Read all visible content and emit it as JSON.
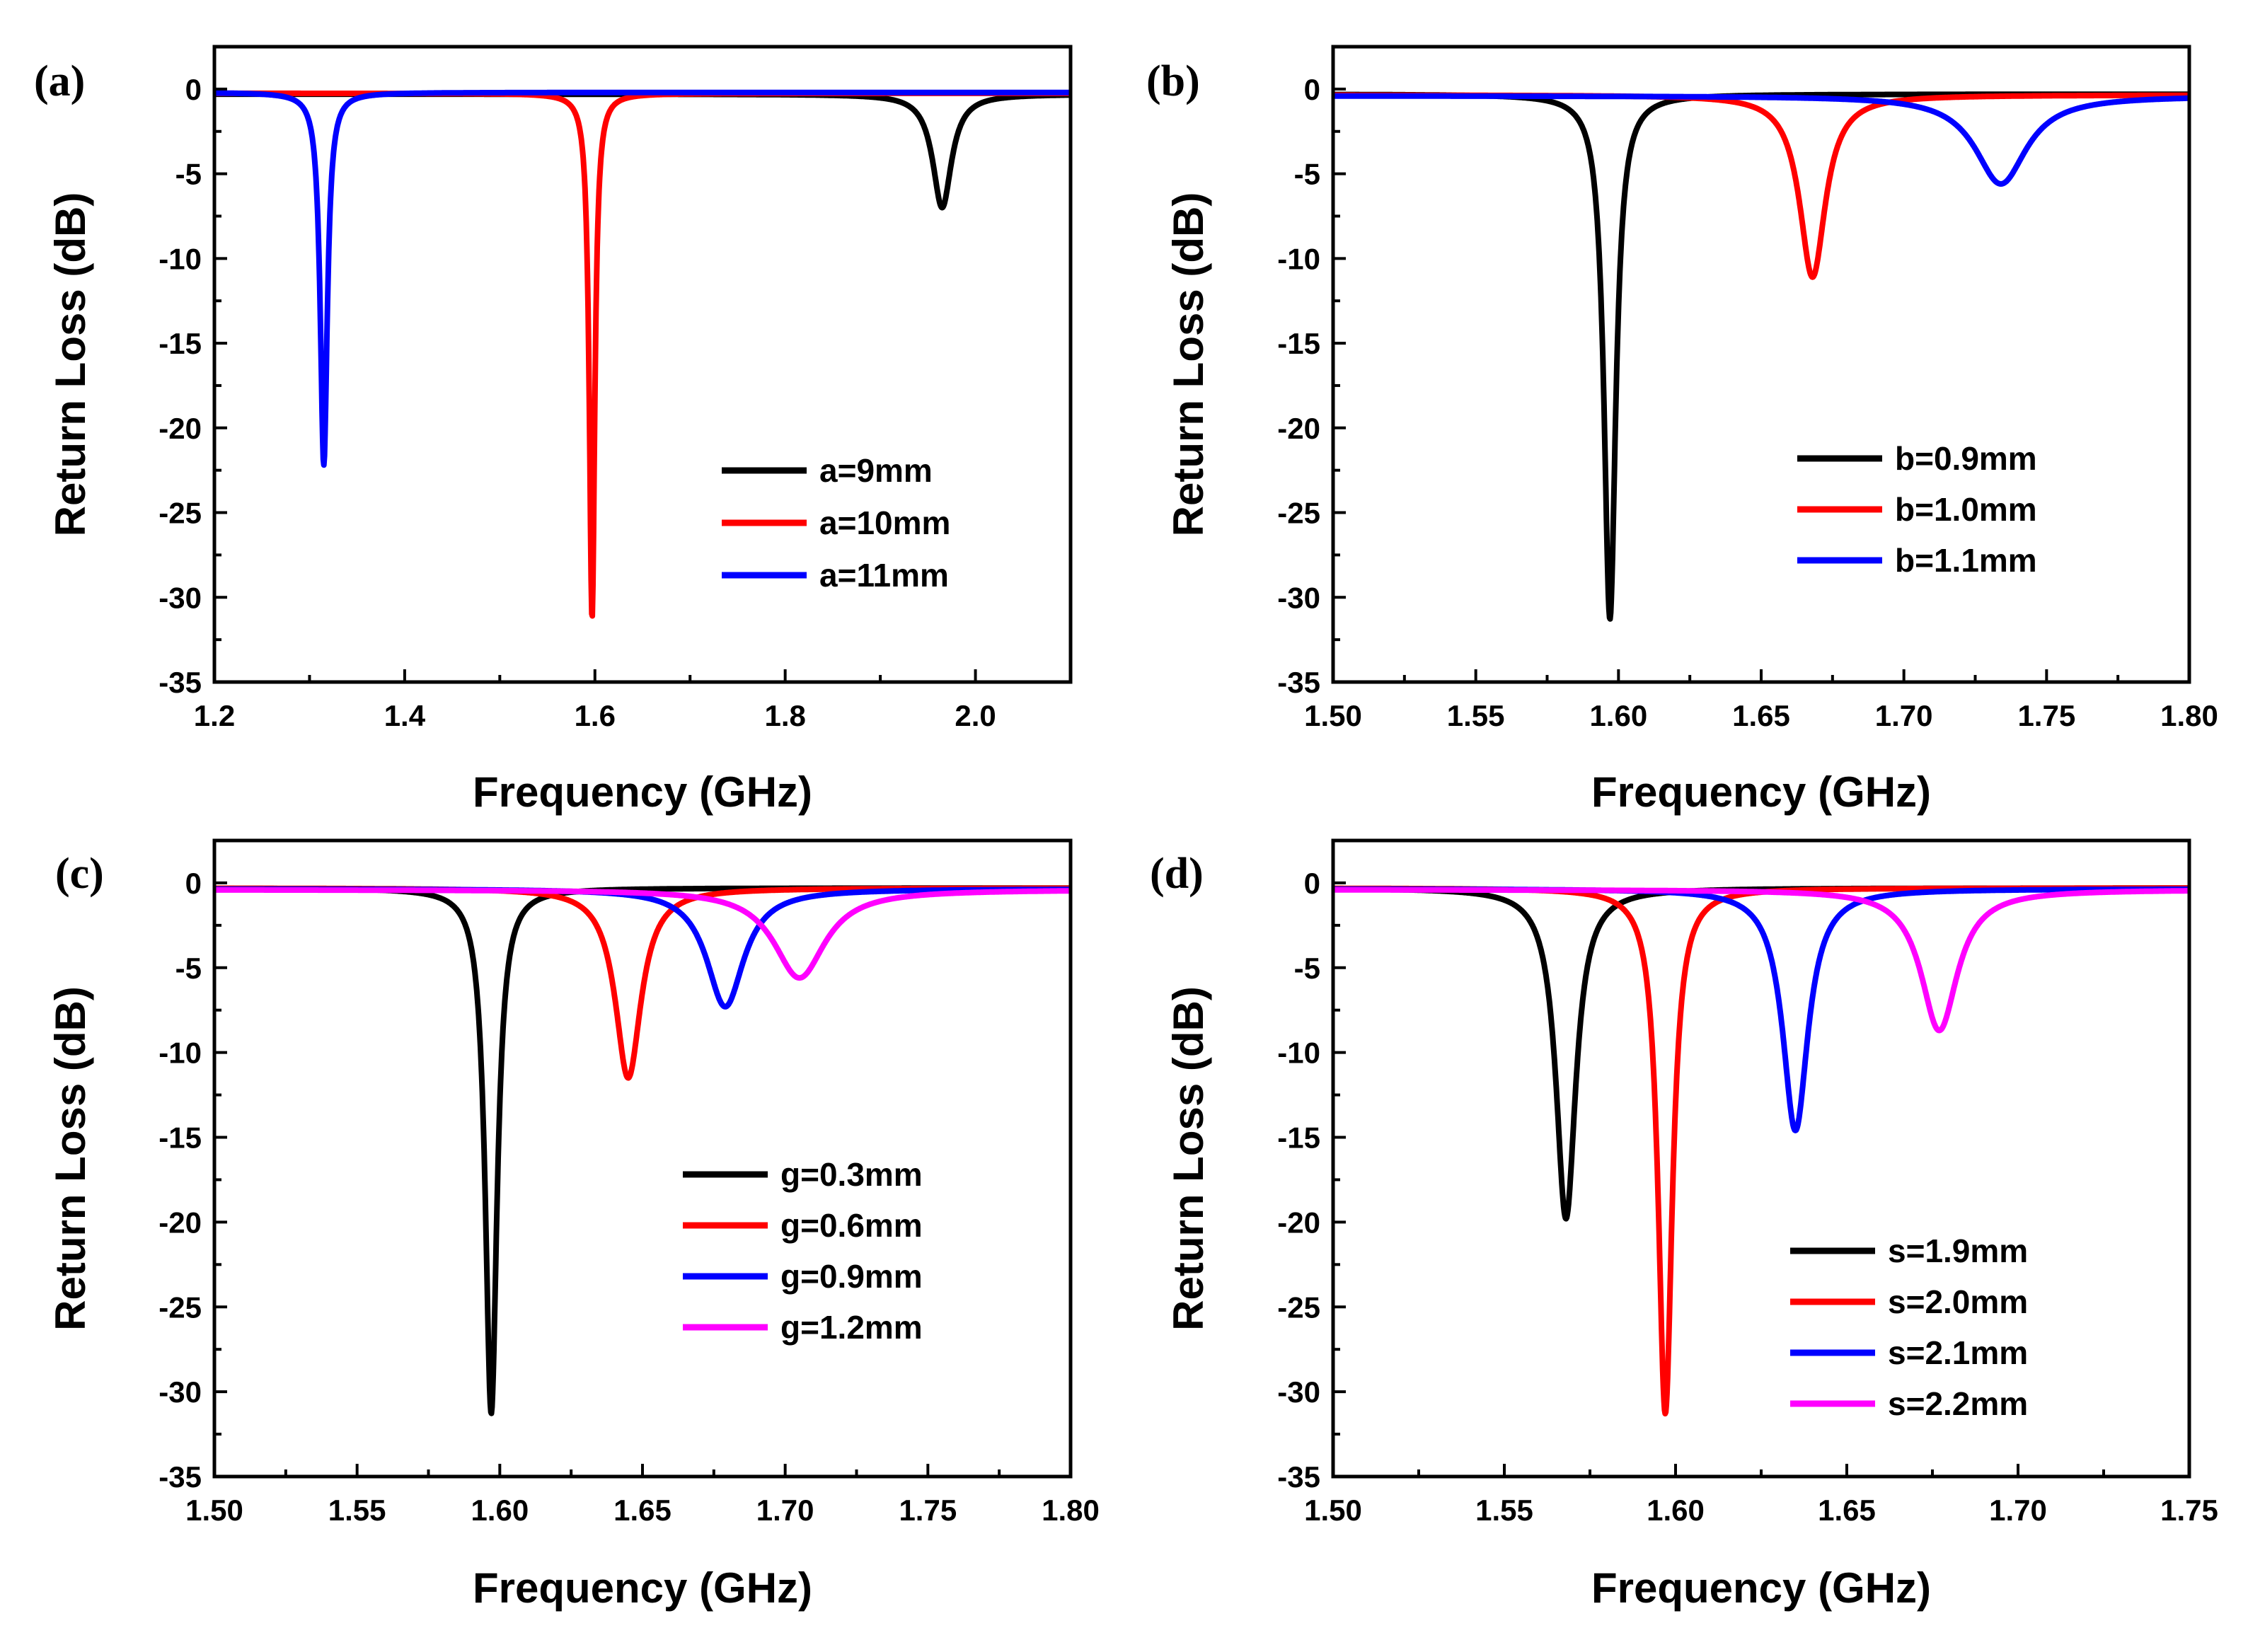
{
  "chart_data": [
    {
      "type": "line",
      "panel_label": "(a)",
      "xlabel": "Frequency (GHz)",
      "ylabel": "Return Loss (dB)",
      "xlim": [
        1.2,
        2.1
      ],
      "ylim": [
        -35,
        2.5
      ],
      "xticks": [
        1.2,
        1.4,
        1.6,
        1.8,
        2.0
      ],
      "xtick_labels": [
        "1.2",
        "1.4",
        "1.6",
        "1.8",
        "2.0"
      ],
      "yticks": [
        0,
        -5,
        -10,
        -15,
        -20,
        -25,
        -30,
        -35
      ],
      "ytick_labels": [
        "0",
        "-5",
        "-10",
        "-15",
        "-20",
        "-25",
        "-30",
        "-35"
      ],
      "legend_position": "lower-right",
      "series": [
        {
          "name": "a=9mm",
          "color": "#000000",
          "f0": 1.965,
          "depth": -7.0,
          "width": 0.012,
          "base": -0.3
        },
        {
          "name": "a=10mm",
          "color": "#ff0000",
          "f0": 1.597,
          "depth": -31.3,
          "width": 0.0035,
          "base": -0.25
        },
        {
          "name": "a=11mm",
          "color": "#0000ff",
          "f0": 1.315,
          "depth": -22.2,
          "width": 0.0045,
          "base": -0.2
        }
      ]
    },
    {
      "type": "line",
      "panel_label": "(b)",
      "xlabel": "Frequency (GHz)",
      "ylabel": "Return Loss (dB)",
      "xlim": [
        1.5,
        1.8
      ],
      "ylim": [
        -35,
        2.5
      ],
      "xticks": [
        1.5,
        1.55,
        1.6,
        1.65,
        1.7,
        1.75,
        1.8
      ],
      "xtick_labels": [
        "1.50",
        "1.55",
        "1.60",
        "1.65",
        "1.70",
        "1.75",
        "1.80"
      ],
      "yticks": [
        0,
        -5,
        -10,
        -15,
        -20,
        -25,
        -30,
        -35
      ],
      "ytick_labels": [
        "0",
        "-5",
        "-10",
        "-15",
        "-20",
        "-25",
        "-30",
        "-35"
      ],
      "legend_position": "lower-right",
      "series": [
        {
          "name": "b=0.9mm",
          "color": "#000000",
          "f0": 1.597,
          "depth": -31.3,
          "width": 0.0025,
          "base": -0.3
        },
        {
          "name": "b=1.0mm",
          "color": "#ff0000",
          "f0": 1.668,
          "depth": -11.1,
          "width": 0.0055,
          "base": -0.35
        },
        {
          "name": "b=1.1mm",
          "color": "#0000ff",
          "f0": 1.734,
          "depth": -5.6,
          "width": 0.011,
          "base": -0.4
        }
      ]
    },
    {
      "type": "line",
      "panel_label": "(c)",
      "xlabel": "Frequency (GHz)",
      "ylabel": "Return Loss (dB)",
      "xlim": [
        1.5,
        1.8
      ],
      "ylim": [
        -35,
        2.5
      ],
      "xticks": [
        1.5,
        1.55,
        1.6,
        1.65,
        1.7,
        1.75,
        1.8
      ],
      "xtick_labels": [
        "1.50",
        "1.55",
        "1.60",
        "1.65",
        "1.70",
        "1.75",
        "1.80"
      ],
      "yticks": [
        0,
        -5,
        -10,
        -15,
        -20,
        -25,
        -30,
        -35
      ],
      "ytick_labels": [
        "0",
        "-5",
        "-10",
        "-15",
        "-20",
        "-25",
        "-30",
        "-35"
      ],
      "legend_position": "lower-right",
      "series": [
        {
          "name": "g=0.3mm",
          "color": "#000000",
          "f0": 1.597,
          "depth": -31.3,
          "width": 0.0025,
          "base": -0.3
        },
        {
          "name": "g=0.6mm",
          "color": "#ff0000",
          "f0": 1.645,
          "depth": -11.5,
          "width": 0.0055,
          "base": -0.3
        },
        {
          "name": "g=0.9mm",
          "color": "#0000ff",
          "f0": 1.679,
          "depth": -7.3,
          "width": 0.008,
          "base": -0.35
        },
        {
          "name": "g=1.2mm",
          "color": "#ff00ff",
          "f0": 1.705,
          "depth": -5.6,
          "width": 0.011,
          "base": -0.4
        }
      ]
    },
    {
      "type": "line",
      "panel_label": "(d)",
      "xlabel": "Frequency (GHz)",
      "ylabel": "Return Loss (dB)",
      "xlim": [
        1.5,
        1.75
      ],
      "ylim": [
        -35,
        2.5
      ],
      "xticks": [
        1.5,
        1.55,
        1.6,
        1.65,
        1.7,
        1.75
      ],
      "xtick_labels": [
        "1.50",
        "1.55",
        "1.60",
        "1.65",
        "1.70",
        "1.75"
      ],
      "yticks": [
        0,
        -5,
        -10,
        -15,
        -20,
        -25,
        -30,
        -35
      ],
      "ytick_labels": [
        "0",
        "-5",
        "-10",
        "-15",
        "-20",
        "-25",
        "-30",
        "-35"
      ],
      "legend_position": "lower-right",
      "series": [
        {
          "name": "s=1.9mm",
          "color": "#000000",
          "f0": 1.568,
          "depth": -19.8,
          "width": 0.0035,
          "base": -0.3
        },
        {
          "name": "s=2.0mm",
          "color": "#ff0000",
          "f0": 1.597,
          "depth": -31.3,
          "width": 0.0025,
          "base": -0.3
        },
        {
          "name": "s=2.1mm",
          "color": "#0000ff",
          "f0": 1.635,
          "depth": -14.6,
          "width": 0.0045,
          "base": -0.35
        },
        {
          "name": "s=2.2mm",
          "color": "#ff00ff",
          "f0": 1.677,
          "depth": -8.7,
          "width": 0.0065,
          "base": -0.4
        }
      ]
    }
  ]
}
